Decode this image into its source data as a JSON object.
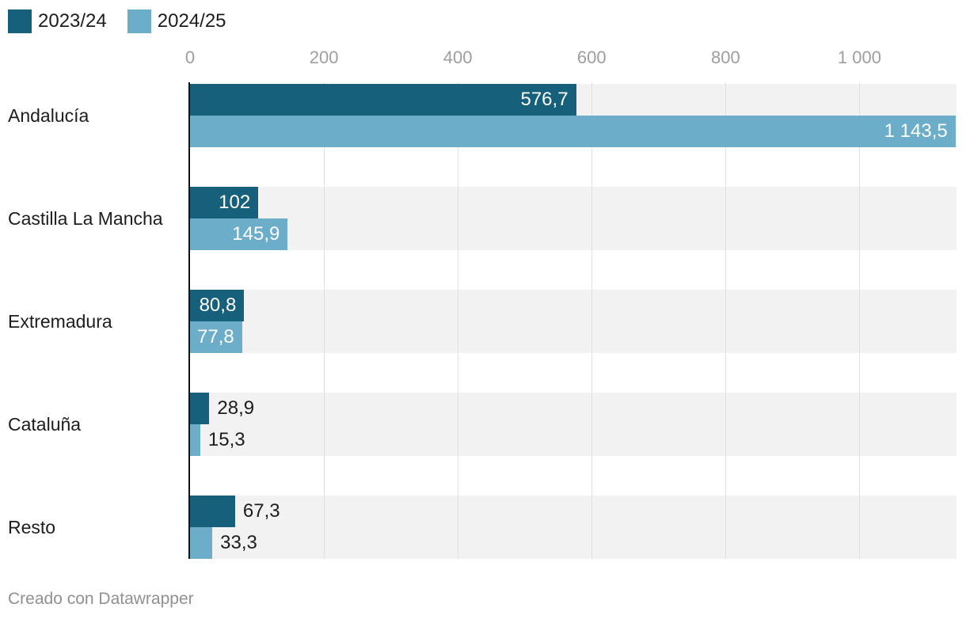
{
  "legend": {
    "items": [
      {
        "label": "2023/24",
        "color": "#17607B"
      },
      {
        "label": "2024/25",
        "color": "#6CADC9"
      }
    ]
  },
  "colors": {
    "series1": "#17607B",
    "series2": "#6CADC9",
    "row_background": "#F2F2F2",
    "gridline": "#E0E0E0",
    "axis_line": "#121212",
    "tick_text": "#9E9E9E",
    "category_text": "#1D1D1D",
    "value_text_inside": "#FFFFFF",
    "value_text_outside": "#1D1D1D",
    "footer_text": "#909090"
  },
  "chart_data": {
    "type": "bar",
    "orientation": "horizontal",
    "title": "",
    "xlabel": "",
    "ylabel": "",
    "categories": [
      "Andalucía",
      "Castilla La Mancha",
      "Extremadura",
      "Cataluña",
      "Resto"
    ],
    "series": [
      {
        "name": "2023/24",
        "values": [
          576.7,
          102,
          80.8,
          28.9,
          67.3
        ],
        "labels": [
          "576,7",
          "102",
          "80,8",
          "28,9",
          "67,3"
        ]
      },
      {
        "name": "2024/25",
        "values": [
          1143.5,
          145.9,
          77.8,
          15.3,
          33.3
        ],
        "labels": [
          "1 143,5",
          "145,9",
          "77,8",
          "15,3",
          "33,3"
        ]
      }
    ],
    "xlim": [
      0,
      1145
    ],
    "xticks": [
      {
        "value": 0,
        "label": "0"
      },
      {
        "value": 200,
        "label": "200"
      },
      {
        "value": 400,
        "label": "400"
      },
      {
        "value": 600,
        "label": "600"
      },
      {
        "value": 800,
        "label": "800"
      },
      {
        "value": 1000,
        "label": "1 000"
      }
    ],
    "grid": "vertical",
    "legend_position": "top-left"
  },
  "footer": {
    "credit": "Creado con Datawrapper"
  }
}
